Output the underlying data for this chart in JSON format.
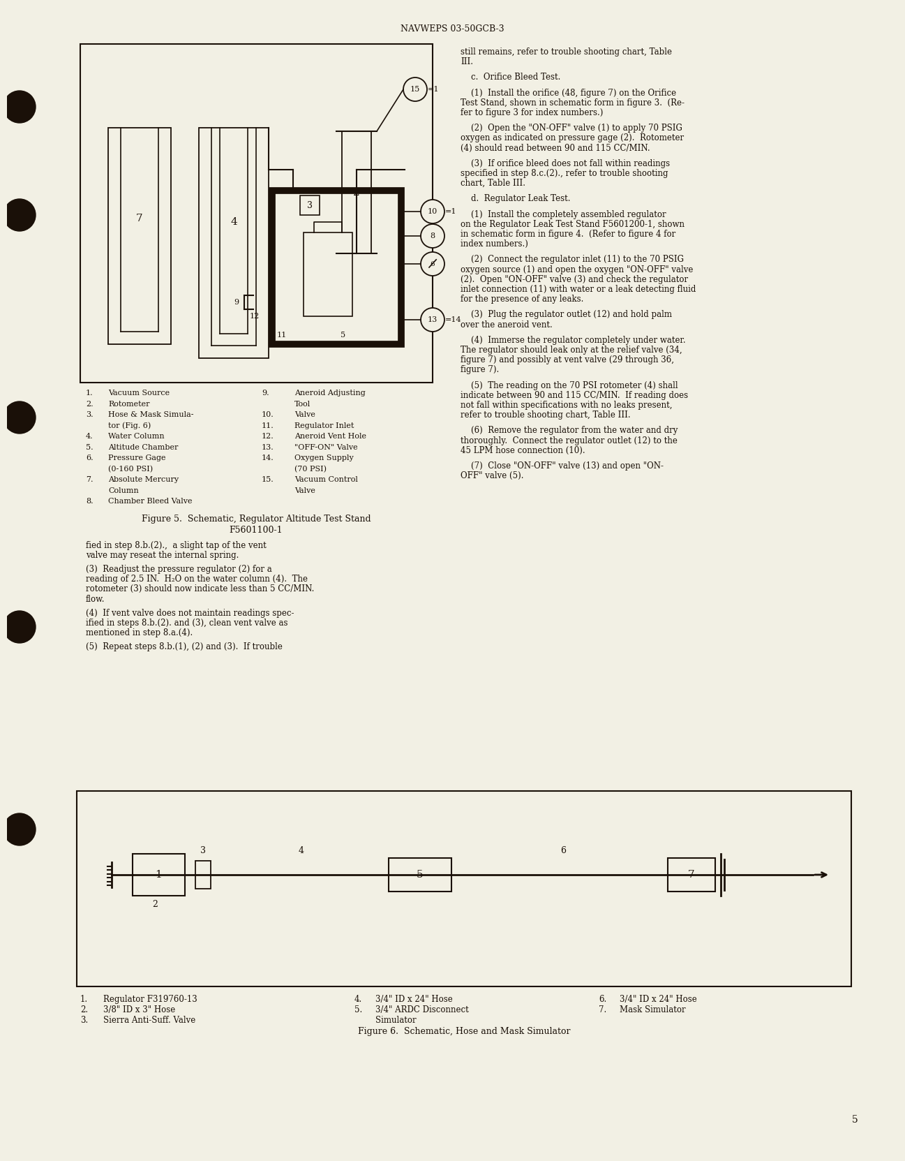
{
  "bg_color": "#f2f0e4",
  "text_color": "#1a1008",
  "header_text": "NAVWEPS 03-50GCB-3",
  "page_number": "5",
  "fig5_legend_left": [
    [
      "1.",
      "Vacuum Source"
    ],
    [
      "2.",
      "Rotometer"
    ],
    [
      "3.",
      "Hose & Mask Simula-"
    ],
    [
      "",
      "tor (Fig. 6)"
    ],
    [
      "4.",
      "Water Column"
    ],
    [
      "5.",
      "Altitude Chamber"
    ],
    [
      "6.",
      "Pressure Gage"
    ],
    [
      "",
      "(0-160 PSI)"
    ],
    [
      "7.",
      "Absolute Mercury"
    ],
    [
      "",
      "Column"
    ],
    [
      "8.",
      "Chamber Bleed Valve"
    ]
  ],
  "fig5_legend_right": [
    [
      "9.",
      "Aneroid Adjusting"
    ],
    [
      "",
      "Tool"
    ],
    [
      "10.",
      "Valve"
    ],
    [
      "11.",
      "Regulator Inlet"
    ],
    [
      "12.",
      "Aneroid Vent Hole"
    ],
    [
      "13.",
      "\"OFF-ON\" Valve"
    ],
    [
      "14.",
      "Oxygen Supply"
    ],
    [
      "",
      "(70 PSI)"
    ],
    [
      "15.",
      "Vacuum Control"
    ],
    [
      "",
      "Valve"
    ]
  ],
  "fig5_caption": [
    "Figure 5.  Schematic, Regulator Altitude Test Stand",
    "F5601100-1"
  ],
  "left_col_paras": [
    "fied in step 8.b.(2).,  a slight tap of the vent\nvalve may reseat the internal spring.",
    "(3)  Readjust the pressure regulator (2) for a\nreading of 2.5 IN.  H₂O on the water column (4).  The\nrotometer (3) should now indicate less than 5 CC/MIN.\nflow.",
    "(4)  If vent valve does not maintain readings spec-\nified in steps 8.b.(2). and (3), clean vent valve as\nmentioned in step 8.a.(4).",
    "(5)  Repeat steps 8.b.(1), (2) and (3).  If trouble"
  ],
  "right_col_paras": [
    "still remains, refer to trouble shooting chart, Table\nIII.",
    "    c.  Orifice Bleed Test.",
    "    (1)  Install the orifice (48, figure 7) on the Orifice\nTest Stand, shown in schematic form in figure 3.  (Re-\nfer to figure 3 for index numbers.)",
    "    (2)  Open the \"ON-OFF\" valve (1) to apply 70 PSIG\noxygen as indicated on pressure gage (2).  Rotometer\n(4) should read between 90 and 115 CC/MIN.",
    "    (3)  If orifice bleed does not fall within readings\nspecified in step 8.c.(2)., refer to trouble shooting\nchart, Table III.",
    "    d.  Regulator Leak Test.",
    "    (1)  Install the completely assembled regulator\non the Regulator Leak Test Stand F5601200-1, shown\nin schematic form in figure 4.  (Refer to figure 4 for\nindex numbers.)",
    "    (2)  Connect the regulator inlet (11) to the 70 PSIG\noxygen source (1) and open the oxygen \"ON-OFF\" valve\n(2).  Open \"ON-OFF\" valve (3) and check the regulator\ninlet connection (11) with water or a leak detecting fluid\nfor the presence of any leaks.",
    "    (3)  Plug the regulator outlet (12) and hold palm\nover the aneroid vent.",
    "    (4)  Immerse the regulator completely under water.\nThe regulator should leak only at the relief valve (34,\nfigure 7) and possibly at vent valve (29 through 36,\nfigure 7).",
    "    (5)  The reading on the 70 PSI rotometer (4) shall\nindicate between 90 and 115 CC/MIN.  If reading does\nnot fall within specifications with no leaks present,\nrefer to trouble shooting chart, Table III.",
    "    (6)  Remove the regulator from the water and dry\nthoroughly.  Connect the regulator outlet (12) to the\n45 LPM hose connection (10).",
    "    (7)  Close \"ON-OFF\" valve (13) and open \"ON-\nOFF\" valve (5)."
  ],
  "fig6_legend_left": [
    [
      "1.",
      "Regulator F319760-13"
    ],
    [
      "2.",
      "3/8\" ID x 3\" Hose"
    ],
    [
      "3.",
      "Sierra Anti-Suff. Valve"
    ]
  ],
  "fig6_legend_mid": [
    [
      "4.",
      "3/4\" ID x 24\" Hose"
    ],
    [
      "5.",
      "3/4\" ARDC Disconnect"
    ],
    [
      "",
      "Simulator"
    ]
  ],
  "fig6_legend_right": [
    [
      "6.",
      "3/4\" ID x 24\" Hose"
    ],
    [
      "7.",
      "Mask Simulator"
    ]
  ],
  "fig6_caption": "Figure 6.  Schematic, Hose and Mask Simulator"
}
